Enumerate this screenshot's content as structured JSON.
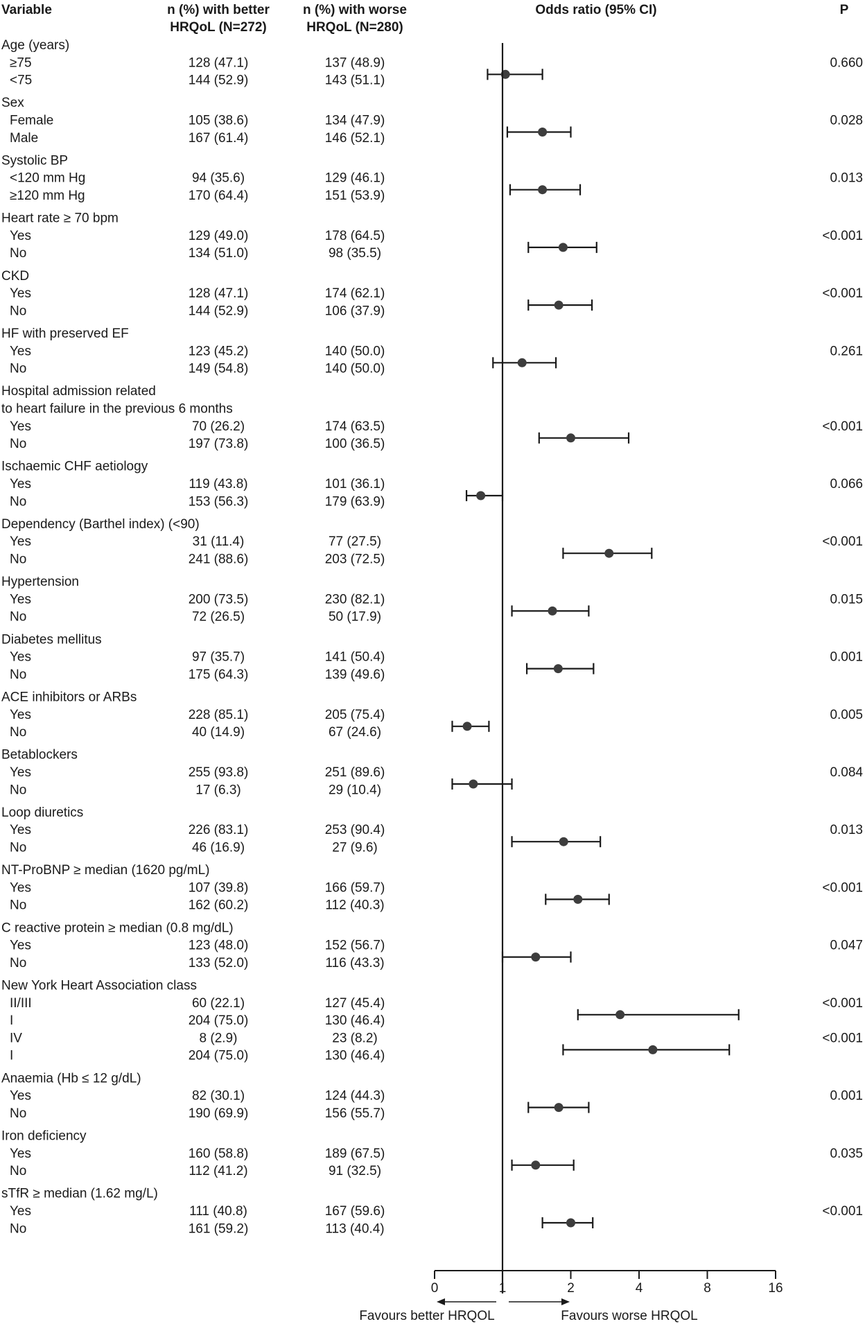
{
  "chart_data": {
    "type": "forest",
    "headers": {
      "variable": "Variable",
      "better": [
        "n (%) with better",
        "HRQoL (N=272)"
      ],
      "worse": [
        "n (%) with worse",
        "HRQoL (N=280)"
      ],
      "or": "Odds ratio (95% CI)",
      "p": "P"
    },
    "xaxis": {
      "ticks": [
        "0",
        "1",
        "2",
        "4",
        "8",
        "16"
      ],
      "left_label": "Favours better HRQOL",
      "right_label": "Favours worse HRQOL"
    },
    "groups": [
      {
        "title": [
          "Age (years)"
        ],
        "rows": [
          {
            "label": "≥75",
            "better": "128 (47.1)",
            "worse": "137 (48.9)"
          },
          {
            "label": "<75",
            "better": "144 (52.9)",
            "worse": "143 (51.1)"
          }
        ],
        "estimates": [
          {
            "or": 1.03,
            "lo": 0.78,
            "hi": 1.5,
            "p": "0.660"
          }
        ]
      },
      {
        "title": [
          "Sex"
        ],
        "rows": [
          {
            "label": "Female",
            "better": "105 (38.6)",
            "worse": "134 (47.9)"
          },
          {
            "label": "Male",
            "better": "167 (61.4)",
            "worse": "146 (52.1)"
          }
        ],
        "estimates": [
          {
            "or": 1.5,
            "lo": 1.05,
            "hi": 2.0,
            "p": "0.028"
          }
        ]
      },
      {
        "title": [
          "Systolic BP"
        ],
        "rows": [
          {
            "label": "<120 mm Hg",
            "better": "94 (35.6)",
            "worse": "129 (46.1)"
          },
          {
            "label": "≥120 mm Hg",
            "better": "170 (64.4)",
            "worse": "151 (53.9)"
          }
        ],
        "estimates": [
          {
            "or": 1.5,
            "lo": 1.08,
            "hi": 2.2,
            "p": "0.013"
          }
        ]
      },
      {
        "title": [
          "Heart rate ≥ 70 bpm"
        ],
        "rows": [
          {
            "label": "Yes",
            "better": "129 (49.0)",
            "worse": "178 (64.5)"
          },
          {
            "label": "No",
            "better": "134 (51.0)",
            "worse": "98 (35.5)"
          }
        ],
        "estimates": [
          {
            "or": 1.85,
            "lo": 1.3,
            "hi": 2.6,
            "p": "<0.001"
          }
        ]
      },
      {
        "title": [
          "CKD"
        ],
        "rows": [
          {
            "label": "Yes",
            "better": "128 (47.1)",
            "worse": "174 (62.1)"
          },
          {
            "label": "No",
            "better": "144 (52.9)",
            "worse": "106 (37.9)"
          }
        ],
        "estimates": [
          {
            "or": 1.77,
            "lo": 1.3,
            "hi": 2.48,
            "p": "<0.001"
          }
        ]
      },
      {
        "title": [
          "HF with preserved EF"
        ],
        "rows": [
          {
            "label": "Yes",
            "better": "123 (45.2)",
            "worse": "140 (50.0)"
          },
          {
            "label": "No",
            "better": "149 (54.8)",
            "worse": "140 (50.0)"
          }
        ],
        "estimates": [
          {
            "or": 1.22,
            "lo": 0.86,
            "hi": 1.72,
            "p": "0.261"
          }
        ]
      },
      {
        "title": [
          "Hospital admission related",
          "to heart failure in the previous 6 months"
        ],
        "rows": [
          {
            "label": "Yes",
            "better": "70 (26.2)",
            "worse": "174 (63.5)"
          },
          {
            "label": "No",
            "better": "197 (73.8)",
            "worse": "100 (36.5)"
          }
        ],
        "estimates": [
          {
            "or": 2.0,
            "lo": 1.45,
            "hi": 3.6,
            "p": "<0.001"
          }
        ]
      },
      {
        "title": [
          "Ischaemic CHF aetiology"
        ],
        "rows": [
          {
            "label": "Yes",
            "better": "119 (43.8)",
            "worse": "101 (36.1)"
          },
          {
            "label": "No",
            "better": "153 (56.3)",
            "worse": "179 (63.9)"
          }
        ],
        "estimates": [
          {
            "or": 0.68,
            "lo": 0.47,
            "hi": 1.0,
            "p": "0.066"
          }
        ]
      },
      {
        "title": [
          "Dependency (Barthel index) (<90)"
        ],
        "rows": [
          {
            "label": "Yes",
            "better": "31 (11.4)",
            "worse": "77 (27.5)"
          },
          {
            "label": "No",
            "better": "241 (88.6)",
            "worse": "203 (72.5)"
          }
        ],
        "estimates": [
          {
            "or": 2.95,
            "lo": 1.85,
            "hi": 4.55,
            "p": "<0.001"
          }
        ]
      },
      {
        "title": [
          "Hypertension"
        ],
        "rows": [
          {
            "label": "Yes",
            "better": "200 (73.5)",
            "worse": "230 (82.1)"
          },
          {
            "label": "No",
            "better": "72 (26.5)",
            "worse": "50 (17.9)"
          }
        ],
        "estimates": [
          {
            "or": 1.66,
            "lo": 1.1,
            "hi": 2.4,
            "p": "0.015"
          }
        ]
      },
      {
        "title": [
          "Diabetes mellitus"
        ],
        "rows": [
          {
            "label": "Yes",
            "better": "97 (35.7)",
            "worse": "141 (50.4)"
          },
          {
            "label": "No",
            "better": "175 (64.3)",
            "worse": "139 (49.6)"
          }
        ],
        "estimates": [
          {
            "or": 1.76,
            "lo": 1.28,
            "hi": 2.52,
            "p": "0.001"
          }
        ]
      },
      {
        "title": [
          "ACE inhibitors or ARBs"
        ],
        "rows": [
          {
            "label": "Yes",
            "better": "228 (85.1)",
            "worse": "205 (75.4)"
          },
          {
            "label": "No",
            "better": "40 (14.9)",
            "worse": "67 (24.6)"
          }
        ],
        "estimates": [
          {
            "or": 0.48,
            "lo": 0.26,
            "hi": 0.8,
            "p": "0.005"
          }
        ]
      },
      {
        "title": [
          "Betablockers"
        ],
        "rows": [
          {
            "label": "Yes",
            "better": "255 (93.8)",
            "worse": "251 (89.6)"
          },
          {
            "label": "No",
            "better": "17 (6.3)",
            "worse": "29 (10.4)"
          }
        ],
        "estimates": [
          {
            "or": 0.57,
            "lo": 0.26,
            "hi": 1.1,
            "p": "0.084"
          }
        ]
      },
      {
        "title": [
          "Loop diuretics"
        ],
        "rows": [
          {
            "label": "Yes",
            "better": "226 (83.1)",
            "worse": "253 (90.4)"
          },
          {
            "label": "No",
            "better": "46 (16.9)",
            "worse": "27 (9.6)"
          }
        ],
        "estimates": [
          {
            "or": 1.86,
            "lo": 1.1,
            "hi": 2.7,
            "p": "0.013"
          }
        ]
      },
      {
        "title": [
          "NT-ProBNP  ≥ median (1620 pg/mL)"
        ],
        "rows": [
          {
            "label": "Yes",
            "better": "107 (39.8)",
            "worse": "166 (59.7)"
          },
          {
            "label": "No",
            "better": "162 (60.2)",
            "worse": "112 (40.3)"
          }
        ],
        "estimates": [
          {
            "or": 2.15,
            "lo": 1.55,
            "hi": 2.95,
            "p": "<0.001"
          }
        ]
      },
      {
        "title": [
          "C reactive protein ≥ median (0.8 mg/dL)"
        ],
        "rows": [
          {
            "label": "Yes",
            "better": "123 (48.0)",
            "worse": "152 (56.7)"
          },
          {
            "label": "No",
            "better": "133 (52.0)",
            "worse": "116 (43.3)"
          }
        ],
        "estimates": [
          {
            "or": 1.4,
            "lo": 1.0,
            "hi": 2.0,
            "p": "0.047"
          }
        ]
      },
      {
        "title": [
          "New York Heart Association class"
        ],
        "rows": [
          {
            "label": "II/III",
            "better": "60 (22.1)",
            "worse": "127 (45.4)"
          },
          {
            "label": "I",
            "better": "204 (75.0)",
            "worse": "130 (46.4)"
          },
          {
            "label": "IV",
            "better": "8 (2.9)",
            "worse": "23 (8.2)"
          },
          {
            "label": "I",
            "better": "204 (75.0)",
            "worse": "130 (46.4)"
          }
        ],
        "estimates": [
          {
            "or": 3.3,
            "lo": 2.15,
            "hi": 11.0,
            "p": "<0.001"
          },
          {
            "or": 4.6,
            "lo": 1.85,
            "hi": 10.0,
            "p": "<0.001"
          }
        ]
      },
      {
        "title": [
          "Anaemia (Hb ≤ 12 g/dL)"
        ],
        "rows": [
          {
            "label": "Yes",
            "better": "82 (30.1)",
            "worse": "124 (44.3)"
          },
          {
            "label": "No",
            "better": "190 (69.9)",
            "worse": "156 (55.7)"
          }
        ],
        "estimates": [
          {
            "or": 1.77,
            "lo": 1.3,
            "hi": 2.4,
            "p": "0.001"
          }
        ]
      },
      {
        "title": [
          "Iron deficiency"
        ],
        "rows": [
          {
            "label": "Yes",
            "better": "160 (58.8)",
            "worse": "189 (67.5)"
          },
          {
            "label": "No",
            "better": "112 (41.2)",
            "worse": "91 (32.5)"
          }
        ],
        "estimates": [
          {
            "or": 1.4,
            "lo": 1.1,
            "hi": 2.06,
            "p": "0.035"
          }
        ]
      },
      {
        "title": [
          "sTfR ≥ median (1.62 mg/L)"
        ],
        "rows": [
          {
            "label": "Yes",
            "better": "111 (40.8)",
            "worse": "167 (59.6)"
          },
          {
            "label": "No",
            "better": "161 (59.2)",
            "worse": "113 (40.4)"
          }
        ],
        "estimates": [
          {
            "or": 2.0,
            "lo": 1.5,
            "hi": 2.5,
            "p": "<0.001"
          }
        ]
      }
    ]
  }
}
